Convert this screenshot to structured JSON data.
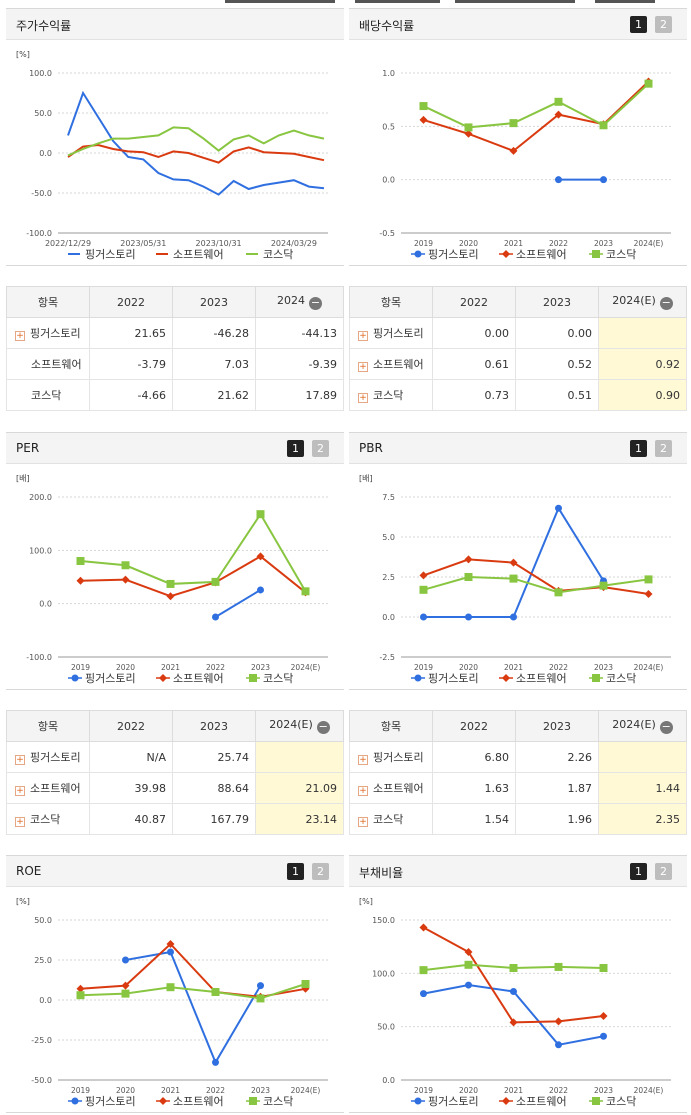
{
  "colors": {
    "s0": "#2f6fe0",
    "s1": "#d93a10",
    "s2": "#88c540"
  },
  "legend": [
    "핑거스토리",
    "소프트웨어",
    "코스닥"
  ],
  "charts": {
    "stock_return": {
      "title": "주가수익률",
      "unit": "[%]",
      "yticks": [
        "100.0",
        "50.0",
        "0.0",
        "-50.0",
        "-100.0"
      ],
      "xticks": [
        "2022/12/29",
        "2023/05/31",
        "2023/10/31",
        "2024/03/29"
      ]
    },
    "dividend": {
      "title": "배당수익률",
      "pages": [
        "1",
        "2"
      ],
      "yticks": [
        "1.0",
        "0.5",
        "0.0",
        "-0.5"
      ],
      "xticks": [
        "2019",
        "2020",
        "2021",
        "2022",
        "2023",
        "2024(E)"
      ]
    },
    "per": {
      "title": "PER",
      "pages": [
        "1",
        "2"
      ],
      "unit": "[배]",
      "yticks": [
        "200.0",
        "100.0",
        "0.0",
        "-100.0"
      ],
      "xticks": [
        "2019",
        "2020",
        "2021",
        "2022",
        "2023",
        "2024(E)"
      ]
    },
    "pbr": {
      "title": "PBR",
      "pages": [
        "1",
        "2"
      ],
      "unit": "[배]",
      "yticks": [
        "7.5",
        "5.0",
        "2.5",
        "0.0",
        "-2.5"
      ],
      "xticks": [
        "2019",
        "2020",
        "2021",
        "2022",
        "2023",
        "2024(E)"
      ]
    },
    "roe": {
      "title": "ROE",
      "pages": [
        "1",
        "2"
      ],
      "unit": "[%]",
      "yticks": [
        "50.0",
        "25.0",
        "0.0",
        "-25.0",
        "-50.0"
      ],
      "xticks": [
        "2019",
        "2020",
        "2021",
        "2022",
        "2023",
        "2024(E)"
      ]
    },
    "debt": {
      "title": "부채비율",
      "pages": [
        "1",
        "2"
      ],
      "unit": "[%]",
      "yticks": [
        "150.0",
        "100.0",
        "50.0",
        "0.0"
      ],
      "xticks": [
        "2019",
        "2020",
        "2021",
        "2022",
        "2023",
        "2024(E)"
      ]
    }
  },
  "tables": {
    "stock_return": {
      "header": [
        "항목",
        "2022",
        "2023",
        "2024"
      ],
      "rows": [
        {
          "name": "핑거스토리",
          "v": [
            "21.65",
            "-46.28",
            "-44.13"
          ]
        },
        {
          "name": "소프트웨어",
          "v": [
            "-3.79",
            "7.03",
            "-9.39"
          ]
        },
        {
          "name": "코스닥",
          "v": [
            "-4.66",
            "21.62",
            "17.89"
          ]
        }
      ]
    },
    "dividend": {
      "header": [
        "항목",
        "2022",
        "2023",
        "2024(E)"
      ],
      "rows": [
        {
          "name": "핑거스토리",
          "v": [
            "0.00",
            "0.00",
            ""
          ]
        },
        {
          "name": "소프트웨어",
          "v": [
            "0.61",
            "0.52",
            "0.92"
          ]
        },
        {
          "name": "코스닥",
          "v": [
            "0.73",
            "0.51",
            "0.90"
          ]
        }
      ]
    },
    "per": {
      "header": [
        "항목",
        "2022",
        "2023",
        "2024(E)"
      ],
      "rows": [
        {
          "name": "핑거스토리",
          "v": [
            "N/A",
            "25.74",
            ""
          ]
        },
        {
          "name": "소프트웨어",
          "v": [
            "39.98",
            "88.64",
            "21.09"
          ]
        },
        {
          "name": "코스닥",
          "v": [
            "40.87",
            "167.79",
            "23.14"
          ]
        }
      ]
    },
    "pbr": {
      "header": [
        "항목",
        "2022",
        "2023",
        "2024(E)"
      ],
      "rows": [
        {
          "name": "핑거스토리",
          "v": [
            "6.80",
            "2.26",
            ""
          ]
        },
        {
          "name": "소프트웨어",
          "v": [
            "1.63",
            "1.87",
            "1.44"
          ]
        },
        {
          "name": "코스닥",
          "v": [
            "1.54",
            "1.96",
            "2.35"
          ]
        }
      ]
    }
  },
  "chart_data": [
    {
      "type": "line",
      "title": "주가수익률",
      "ylabel": "[%]",
      "ylim": [
        -100,
        100
      ],
      "x": [
        "2022/12/29",
        "",
        "",
        "",
        "",
        "2023/05/31",
        "",
        "",
        "",
        "",
        "2023/10/31",
        "",
        "",
        "",
        "",
        "2024/03/29",
        "",
        ""
      ],
      "series": [
        {
          "name": "핑거스토리",
          "values": [
            22,
            75,
            45,
            15,
            -5,
            -8,
            -25,
            -33,
            -34,
            -42,
            -52,
            -35,
            -45,
            -40,
            -37,
            -34,
            -42,
            -44
          ]
        },
        {
          "name": "소프트웨어",
          "values": [
            -5,
            8,
            10,
            5,
            2,
            1,
            -5,
            2,
            0,
            -6,
            -12,
            2,
            7,
            1,
            0,
            -1,
            -5,
            -9
          ]
        },
        {
          "name": "코스닥",
          "values": [
            -3,
            5,
            12,
            18,
            18,
            20,
            22,
            32,
            31,
            18,
            3,
            17,
            22,
            12,
            22,
            28,
            22,
            18
          ]
        }
      ]
    },
    {
      "type": "line",
      "title": "배당수익률",
      "ylim": [
        -0.5,
        1.0
      ],
      "x": [
        "2019",
        "2020",
        "2021",
        "2022",
        "2023",
        "2024(E)"
      ],
      "series": [
        {
          "name": "핑거스토리",
          "values": [
            null,
            null,
            null,
            0.0,
            0.0,
            null
          ]
        },
        {
          "name": "소프트웨어",
          "values": [
            0.56,
            0.43,
            0.27,
            0.61,
            0.52,
            0.92
          ]
        },
        {
          "name": "코스닥",
          "values": [
            0.69,
            0.49,
            0.53,
            0.73,
            0.51,
            0.9
          ]
        }
      ]
    },
    {
      "type": "line",
      "title": "PER",
      "ylabel": "[배]",
      "ylim": [
        -100,
        200
      ],
      "x": [
        "2019",
        "2020",
        "2021",
        "2022",
        "2023",
        "2024(E)"
      ],
      "series": [
        {
          "name": "핑거스토리",
          "values": [
            null,
            null,
            null,
            -25,
            25.74,
            null
          ]
        },
        {
          "name": "소프트웨어",
          "values": [
            43,
            45,
            14,
            39.98,
            88.64,
            21.09
          ]
        },
        {
          "name": "코스닥",
          "values": [
            80,
            72,
            37,
            40.87,
            167.79,
            23.14
          ]
        }
      ]
    },
    {
      "type": "line",
      "title": "PBR",
      "ylabel": "[배]",
      "ylim": [
        -2.5,
        7.5
      ],
      "x": [
        "2019",
        "2020",
        "2021",
        "2022",
        "2023",
        "2024(E)"
      ],
      "series": [
        {
          "name": "핑거스토리",
          "values": [
            0.0,
            0.0,
            0.0,
            6.8,
            2.26,
            null
          ]
        },
        {
          "name": "소프트웨어",
          "values": [
            2.6,
            3.6,
            3.4,
            1.63,
            1.87,
            1.44
          ]
        },
        {
          "name": "코스닥",
          "values": [
            1.7,
            2.5,
            2.4,
            1.54,
            1.96,
            2.35
          ]
        }
      ]
    },
    {
      "type": "line",
      "title": "ROE",
      "ylabel": "[%]",
      "ylim": [
        -50,
        50
      ],
      "x": [
        "2019",
        "2020",
        "2021",
        "2022",
        "2023",
        "2024(E)"
      ],
      "series": [
        {
          "name": "핑거스토리",
          "values": [
            null,
            25,
            30,
            -39,
            9,
            null
          ]
        },
        {
          "name": "소프트웨어",
          "values": [
            7,
            9,
            35,
            5,
            2,
            7
          ]
        },
        {
          "name": "코스닥",
          "values": [
            3,
            4,
            8,
            5,
            1,
            10
          ]
        }
      ]
    },
    {
      "type": "line",
      "title": "부채비율",
      "ylabel": "[%]",
      "ylim": [
        0,
        150
      ],
      "x": [
        "2019",
        "2020",
        "2021",
        "2022",
        "2023",
        "2024(E)"
      ],
      "series": [
        {
          "name": "핑거스토리",
          "values": [
            81,
            89,
            83,
            33,
            41,
            null
          ]
        },
        {
          "name": "소프트웨어",
          "values": [
            143,
            120,
            54,
            55,
            60,
            null
          ]
        },
        {
          "name": "코스닥",
          "values": [
            103,
            108,
            105,
            106,
            105,
            null
          ]
        }
      ]
    }
  ]
}
